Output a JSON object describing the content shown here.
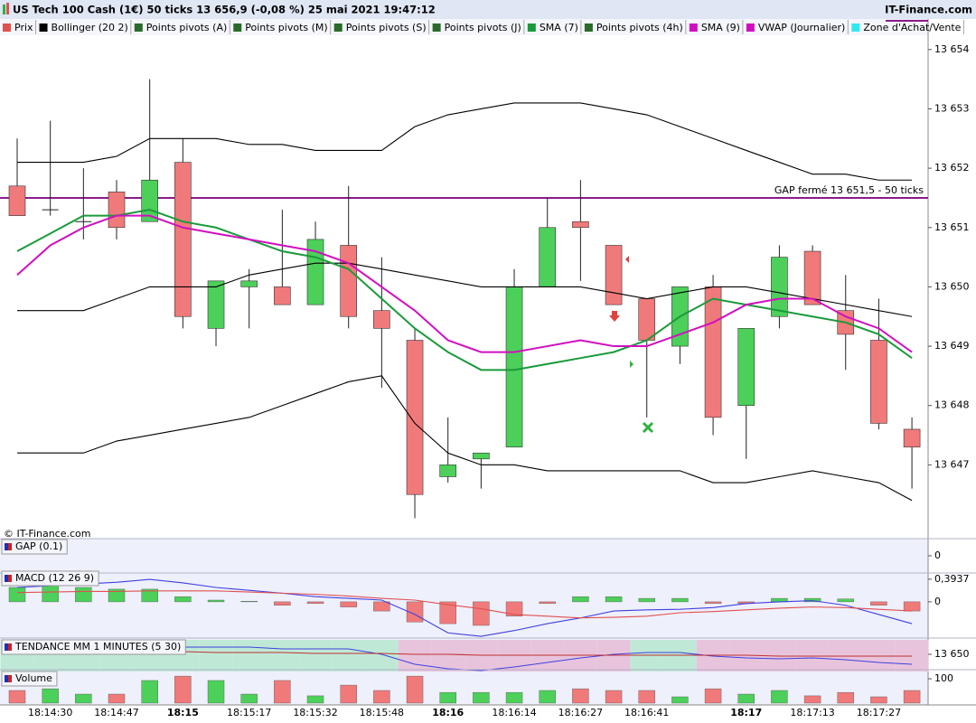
{
  "header": {
    "title": "US Tech 100 Cash (1€) 50 ticks 13 656,9 (-0,08 %) 25 mai 2021 19:47:12",
    "brand": "IT-Finance.com",
    "copyright": "© IT-Finance.com",
    "tabs": [
      {
        "name": "Prix",
        "color": "#e05050"
      },
      {
        "name": "Bollinger (20 2)",
        "color": "#000000"
      },
      {
        "name": "Points pivots (A)",
        "color": "#2a6a2a"
      },
      {
        "name": "Points pivots (M)",
        "color": "#2a6a2a"
      },
      {
        "name": "Points pivots (S)",
        "color": "#2a6a2a"
      },
      {
        "name": "Points pivots (J)",
        "color": "#2a6a2a"
      },
      {
        "name": "SMA (7)",
        "color": "#1a9a3a"
      },
      {
        "name": "Points pivots (4h)",
        "color": "#2a6a2a"
      },
      {
        "name": "SMA (9)",
        "color": "#d010c0"
      },
      {
        "name": "VWAP (Journalier)",
        "color": "#d010c0"
      },
      {
        "name": "Zone d'Achat/Vente",
        "color": "#30e8f0"
      }
    ]
  },
  "chart_data": [
    {
      "type": "candlestick",
      "categories": [
        null,
        "18:14:30",
        null,
        "18:14:47",
        null,
        "18:15",
        null,
        "18:15:17",
        null,
        "18:15:32",
        null,
        "18:15:48",
        null,
        "18:16",
        null,
        "18:16:14",
        null,
        "18:16:27",
        null,
        "18:16:41",
        null,
        null,
        "18:17",
        null,
        "18:17:13",
        null,
        "18:17:27",
        null
      ],
      "open": [
        13651.7,
        13651.3,
        13651.1,
        13651.6,
        13651.1,
        13652.1,
        13649.3,
        13650.0,
        13650.0,
        13649.7,
        13650.7,
        13649.6,
        13649.1,
        13646.8,
        13647.1,
        13647.3,
        13650.0,
        13651.1,
        13650.7,
        13649.8,
        13649.0,
        13650.0,
        13648.0,
        13649.5,
        13650.6,
        13649.6,
        13649.1,
        13647.6
      ],
      "high": [
        13652.5,
        13652.8,
        13652.0,
        13651.8,
        13653.5,
        13652.5,
        13650.1,
        13650.3,
        13651.3,
        13651.1,
        13651.7,
        13650.5,
        13649.3,
        13647.8,
        13647.2,
        13650.3,
        13651.5,
        13651.8,
        13650.7,
        13649.8,
        13650.0,
        13650.2,
        13649.3,
        13650.7,
        13650.7,
        13650.2,
        13649.8,
        13647.8
      ],
      "low": [
        13651.2,
        13651.2,
        13650.8,
        13650.8,
        13651.1,
        13649.3,
        13649.0,
        13649.3,
        13649.7,
        13649.7,
        13649.3,
        13648.3,
        13646.1,
        13646.7,
        13646.6,
        13647.3,
        13650.0,
        13650.1,
        13649.7,
        13647.8,
        13648.7,
        13647.5,
        13647.1,
        13649.3,
        13649.7,
        13648.6,
        13647.6,
        13646.6
      ],
      "close": [
        13651.2,
        13651.3,
        13651.1,
        13651.0,
        13651.8,
        13649.5,
        13650.1,
        13650.1,
        13649.7,
        13650.8,
        13649.5,
        13649.3,
        13646.5,
        13647.0,
        13647.2,
        13650.0,
        13651.0,
        13651.0,
        13649.7,
        13649.1,
        13650.0,
        13647.8,
        13649.3,
        13650.5,
        13649.7,
        13649.2,
        13647.7,
        13647.3
      ],
      "up_color": "#4cd05a",
      "down_color": "#f07a7a",
      "series": [
        {
          "color": "#000000",
          "values": [
            13652.1,
            13652.1,
            13652.1,
            13652.2,
            13652.5,
            13652.5,
            13652.5,
            13652.4,
            13652.4,
            13652.3,
            13652.3,
            13652.3,
            13652.7,
            13652.9,
            13653.0,
            13653.1,
            13653.1,
            13653.1,
            13653.0,
            13652.9,
            13652.7,
            13652.5,
            13652.3,
            13652.1,
            13651.9,
            13651.9,
            13651.8,
            13651.8
          ]
        },
        {
          "color": "#000000",
          "values": [
            13649.6,
            13649.6,
            13649.6,
            13649.8,
            13650.0,
            13650.0,
            13650.0,
            13650.2,
            13650.3,
            13650.4,
            13650.4,
            13650.3,
            13650.2,
            13650.1,
            13650.0,
            13650.0,
            13650.0,
            13650.0,
            13649.9,
            13649.8,
            13649.9,
            13650.0,
            13650.0,
            13649.9,
            13649.8,
            13649.7,
            13649.6,
            13649.5
          ]
        },
        {
          "color": "#000000",
          "values": [
            13647.2,
            13647.2,
            13647.2,
            13647.4,
            13647.5,
            13647.6,
            13647.7,
            13647.8,
            13648.0,
            13648.2,
            13648.4,
            13648.5,
            13647.7,
            13647.2,
            13647.0,
            13647.0,
            13646.9,
            13646.9,
            13646.9,
            13646.9,
            13646.9,
            13646.7,
            13646.7,
            13646.8,
            13646.9,
            13646.8,
            13646.7,
            13646.4
          ]
        },
        {
          "color": "#1a9a3a",
          "values": [
            13650.6,
            13650.9,
            13651.2,
            13651.2,
            13651.3,
            13651.1,
            13651.0,
            13650.8,
            13650.6,
            13650.5,
            13650.3,
            13649.8,
            13649.3,
            13648.9,
            13648.6,
            13648.6,
            13648.7,
            13648.8,
            13648.9,
            13649.1,
            13649.5,
            13649.8,
            13649.7,
            13649.6,
            13649.5,
            13649.4,
            13649.2,
            13648.8
          ]
        },
        {
          "color": "#d010c0",
          "values": [
            13650.2,
            13650.7,
            13651.0,
            13651.2,
            13651.2,
            13651.0,
            13650.9,
            13650.8,
            13650.7,
            13650.6,
            13650.4,
            13650.0,
            13649.6,
            13649.1,
            13648.9,
            13648.9,
            13649.0,
            13649.1,
            13649.0,
            13649.0,
            13649.2,
            13649.4,
            13649.7,
            13649.8,
            13649.8,
            13649.5,
            13649.3,
            13648.9
          ]
        }
      ],
      "hline": {
        "value": 13651.5,
        "label": "GAP fermé 13 651,5 - 50 ticks",
        "color": "#8a1a8a"
      },
      "ylim": [
        13646.0,
        13654.5
      ],
      "yticks": [
        {
          "value": 13647,
          "label": "13 647"
        },
        {
          "value": 13648,
          "label": "13 648"
        },
        {
          "value": 13649,
          "label": "13 649"
        },
        {
          "value": 13650,
          "label": "13 650"
        },
        {
          "value": 13651,
          "label": "13 651"
        },
        {
          "value": 13652,
          "label": "13 652"
        },
        {
          "value": 13653,
          "label": "13 653"
        },
        {
          "value": 13654,
          "label": "13 654"
        }
      ]
    },
    {
      "type": "gap",
      "title": "GAP (0.1)",
      "ylim": [
        -1,
        1
      ],
      "yticks": [
        0
      ]
    },
    {
      "type": "bar",
      "title": "MACD (12 26 9)",
      "values": [
        0.25,
        0.28,
        0.25,
        0.22,
        0.22,
        0.09,
        0.03,
        0.01,
        -0.06,
        -0.03,
        -0.09,
        -0.16,
        -0.35,
        -0.38,
        -0.41,
        -0.25,
        -0.03,
        0.09,
        0.09,
        0.06,
        0.06,
        -0.03,
        -0.03,
        0.06,
        0.06,
        0.05,
        -0.06,
        -0.16
      ],
      "up_color": "#4cd05a",
      "down_color": "#f07a7a",
      "series": [
        {
          "color": "#4040e0",
          "values": [
            0.25,
            0.28,
            0.31,
            0.34,
            0.39,
            0.33,
            0.25,
            0.2,
            0.15,
            0.09,
            0.06,
            0.03,
            -0.22,
            -0.54,
            -0.6,
            -0.5,
            -0.38,
            -0.28,
            -0.16,
            -0.14,
            -0.13,
            -0.1,
            -0.03,
            0.0,
            0.02,
            -0.06,
            -0.22,
            -0.38
          ]
        },
        {
          "color": "#e05050",
          "values": [
            0.16,
            0.17,
            0.18,
            0.18,
            0.19,
            0.19,
            0.19,
            0.17,
            0.15,
            0.13,
            0.1,
            0.06,
            0.03,
            -0.05,
            -0.12,
            -0.22,
            -0.25,
            -0.28,
            -0.27,
            -0.25,
            -0.19,
            -0.17,
            -0.14,
            -0.11,
            -0.09,
            -0.1,
            -0.13,
            -0.16
          ]
        }
      ],
      "ylim": [
        -0.63,
        0.47
      ],
      "yticks": [
        {
          "value": 0.3937,
          "label": "0,3937"
        },
        0
      ]
    },
    {
      "type": "line",
      "title": "TENDANCE MM 1 MINUTES (5 30)",
      "zones": [
        "#bfe9d6",
        "#bfe9d6",
        "#bfe9d6",
        "#bfe9d6",
        "#bfe9d6",
        "#bfe9d6",
        "#bfe9d6",
        "#bfe9d6",
        "#bfe9d6",
        "#bfe9d6",
        "#bfe9d6",
        "#bfe9d6",
        "#e8c4dc",
        "#e8c4dc",
        "#e8c4dc",
        "#e8c4dc",
        "#e8c4dc",
        "#e8c4dc",
        "#e8c4dc",
        "#bfe9d6",
        "#bfe9d6",
        "#e8c4dc",
        "#e8c4dc",
        "#e8c4dc",
        "#e8c4dc",
        "#e8c4dc",
        "#e8c4dc",
        "#e8c4dc"
      ],
      "series": [
        {
          "color": "#4040e0",
          "values": [
            13651.1,
            13651.1,
            13651.1,
            13651.1,
            13651.1,
            13650.8,
            13650.8,
            13650.8,
            13650.6,
            13650.6,
            13650.6,
            13650.0,
            13648.9,
            13648.4,
            13648.2,
            13648.6,
            13649.1,
            13649.6,
            13650.0,
            13650.2,
            13650.2,
            13649.8,
            13649.6,
            13649.5,
            13649.6,
            13649.4,
            13649.1,
            13648.9
          ]
        },
        {
          "color": "#c03030",
          "values": [
            13650.4,
            13650.4,
            13650.4,
            13650.3,
            13650.3,
            13650.3,
            13650.2,
            13650.2,
            13650.2,
            13650.1,
            13650.1,
            13650.1,
            13650.0,
            13650.0,
            13649.9,
            13649.9,
            13649.9,
            13649.9,
            13649.9,
            13649.9,
            13649.9,
            13649.9,
            13649.9,
            13649.8,
            13649.8,
            13649.8,
            13649.8,
            13649.8
          ]
        }
      ],
      "ylim": [
        13648.1,
        13651.6
      ],
      "yticks": [
        {
          "value": 13650,
          "label": "13 650"
        }
      ]
    },
    {
      "type": "bar",
      "title": "Volume",
      "values": [
        52,
        59,
        37,
        37,
        93,
        111,
        93,
        37,
        93,
        30,
        74,
        52,
        111,
        44,
        44,
        44,
        52,
        59,
        52,
        52,
        26,
        59,
        37,
        52,
        30,
        44,
        26,
        52
      ],
      "up_color": "#4cd05a",
      "down_color": "#f07a7a",
      "ylim": [
        0,
        130
      ],
      "yticks": [
        100
      ]
    }
  ]
}
